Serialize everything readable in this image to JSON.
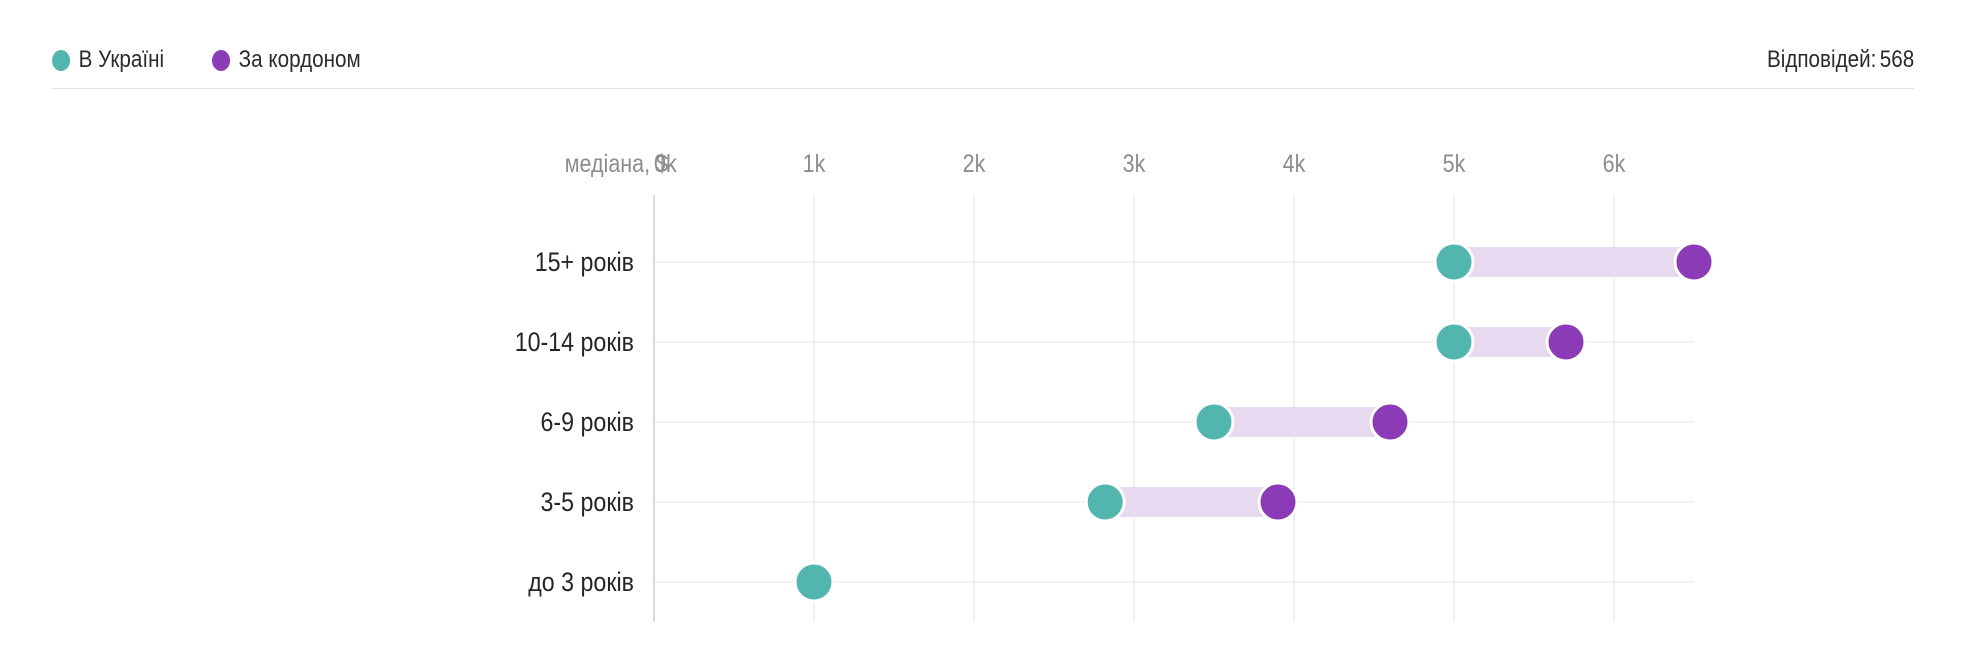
{
  "legend": {
    "items": [
      {
        "label": "В Україні",
        "color": "#52b6ae",
        "name": "legend-ukraine"
      },
      {
        "label": "За кордоном",
        "color": "#8a3bb5",
        "name": "legend-abroad"
      }
    ]
  },
  "responses": {
    "label": "Відповідей:",
    "count": "568"
  },
  "chart_data": {
    "type": "dumbbell",
    "xlabel": "медіана, $",
    "xticks": [
      "0k",
      "1k",
      "2k",
      "3k",
      "4k",
      "5k",
      "6k"
    ],
    "xlim": [
      0,
      6500
    ],
    "grid": true,
    "legend_position": "top-left",
    "categories": [
      "15+ років",
      "10-14 років",
      "6-9 років",
      "3-5 років",
      "до 3 років"
    ],
    "series": [
      {
        "name": "В Україні",
        "color": "#52b6ae",
        "values": [
          5000,
          5000,
          3500,
          2820,
          1000
        ]
      },
      {
        "name": "За кордоном",
        "color": "#8a3bb5",
        "values": [
          6500,
          5700,
          4600,
          3900,
          null
        ]
      }
    ],
    "range_color": "#e6d9f0"
  }
}
